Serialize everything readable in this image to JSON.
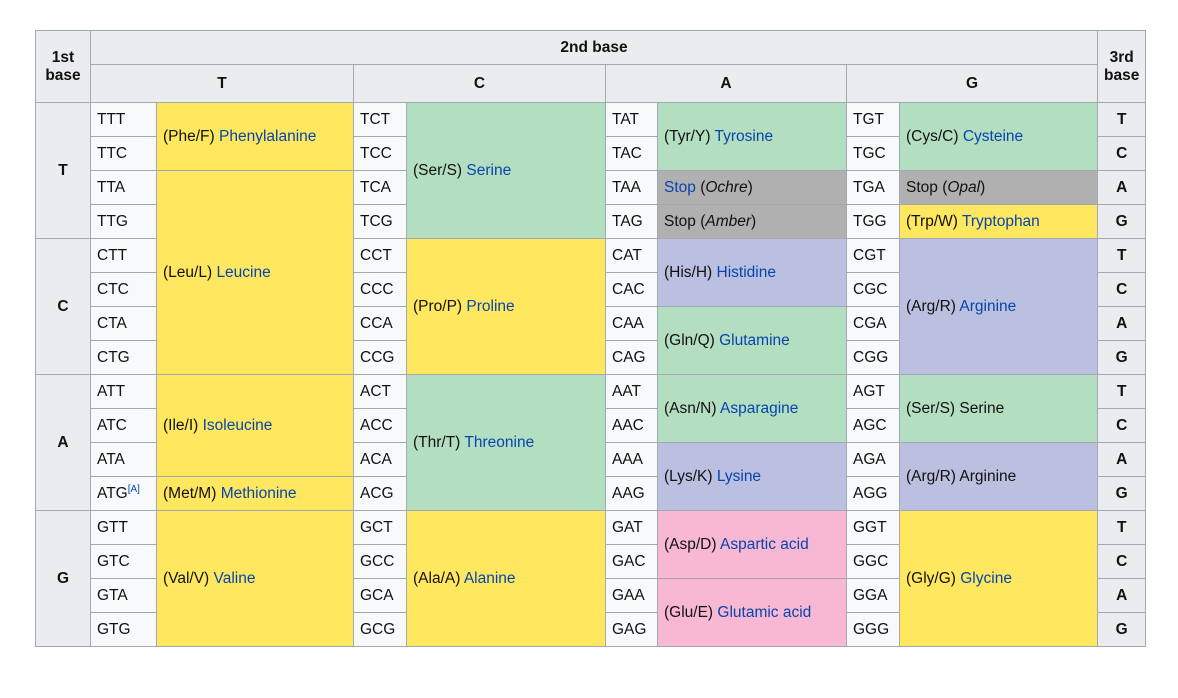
{
  "header": {
    "first_base_line1": "1st",
    "first_base_line2": "base",
    "second_base": "2nd base",
    "third_base_line1": "3rd",
    "third_base_line2": "base",
    "columns": [
      "T",
      "C",
      "A",
      "G"
    ]
  },
  "row_bases": [
    "T",
    "C",
    "A",
    "G"
  ],
  "third_bases": [
    "T",
    "C",
    "A",
    "G"
  ],
  "footnote_ref": "[A]",
  "stop_word": "Stop",
  "codons": {
    "TTT": "TTT",
    "TTC": "TTC",
    "TTA": "TTA",
    "TTG": "TTG",
    "CTT": "CTT",
    "CTC": "CTC",
    "CTA": "CTA",
    "CTG": "CTG",
    "ATT": "ATT",
    "ATC": "ATC",
    "ATA": "ATA",
    "ATG": "ATG",
    "GTT": "GTT",
    "GTC": "GTC",
    "GTA": "GTA",
    "GTG": "GTG",
    "TCT": "TCT",
    "TCC": "TCC",
    "TCA": "TCA",
    "TCG": "TCG",
    "CCT": "CCT",
    "CCC": "CCC",
    "CCA": "CCA",
    "CCG": "CCG",
    "ACT": "ACT",
    "ACC": "ACC",
    "ACA": "ACA",
    "ACG": "ACG",
    "GCT": "GCT",
    "GCC": "GCC",
    "GCA": "GCA",
    "GCG": "GCG",
    "TAT": "TAT",
    "TAC": "TAC",
    "TAA": "TAA",
    "TAG": "TAG",
    "CAT": "CAT",
    "CAC": "CAC",
    "CAA": "CAA",
    "CAG": "CAG",
    "AAT": "AAT",
    "AAC": "AAC",
    "AAA": "AAA",
    "AAG": "AAG",
    "GAT": "GAT",
    "GAC": "GAC",
    "GAA": "GAA",
    "GAG": "GAG",
    "TGT": "TGT",
    "TGC": "TGC",
    "TGA": "TGA",
    "TGG": "TGG",
    "CGT": "CGT",
    "CGC": "CGC",
    "CGA": "CGA",
    "CGG": "CGG",
    "AGT": "AGT",
    "AGC": "AGC",
    "AGA": "AGA",
    "AGG": "AGG",
    "GGT": "GGT",
    "GGC": "GGC",
    "GGA": "GGA",
    "GGG": "GGG"
  },
  "amino_acids": {
    "phe": {
      "abbr": "(Phe/F)",
      "name": "Phenylalanine"
    },
    "leu": {
      "abbr": "(Leu/L)",
      "name": "Leucine"
    },
    "ile": {
      "abbr": "(Ile/I)",
      "name": "Isoleucine"
    },
    "met": {
      "abbr": "(Met/M)",
      "name": "Methionine"
    },
    "val": {
      "abbr": "(Val/V)",
      "name": "Valine"
    },
    "ser1": {
      "abbr": "(Ser/S)",
      "name": "Serine"
    },
    "pro": {
      "abbr": "(Pro/P)",
      "name": "Proline"
    },
    "thr": {
      "abbr": "(Thr/T)",
      "name": "Threonine"
    },
    "ala": {
      "abbr": "(Ala/A)",
      "name": "Alanine"
    },
    "tyr": {
      "abbr": "(Tyr/Y)",
      "name": "Tyrosine"
    },
    "stop_ochre": {
      "name": "Ochre"
    },
    "stop_amber": {
      "name": "Amber"
    },
    "his": {
      "abbr": "(His/H)",
      "name": "Histidine"
    },
    "gln": {
      "abbr": "(Gln/Q)",
      "name": "Glutamine"
    },
    "asn": {
      "abbr": "(Asn/N)",
      "name": "Asparagine"
    },
    "lys": {
      "abbr": "(Lys/K)",
      "name": "Lysine"
    },
    "asp": {
      "abbr": "(Asp/D)",
      "name": "Aspartic acid"
    },
    "glu": {
      "abbr": "(Glu/E)",
      "name": "Glutamic acid"
    },
    "cys": {
      "abbr": "(Cys/C)",
      "name": "Cysteine"
    },
    "stop_opal": {
      "name": "Opal"
    },
    "trp": {
      "abbr": "(Trp/W)",
      "name": "Tryptophan"
    },
    "arg1": {
      "abbr": "(Arg/R)",
      "name": "Arginine"
    },
    "ser2": {
      "abbr": "(Ser/S)",
      "name": "Serine"
    },
    "arg2": {
      "abbr": "(Arg/R)",
      "name": "Arginine"
    },
    "gly": {
      "abbr": "(Gly/G)",
      "name": "Glycine"
    }
  },
  "colors": {
    "nonpolar": "#ffe75f",
    "polar": "#b3dec0",
    "basic": "#bbbfe0",
    "acidic": "#f8b7d3",
    "stop": "#b0b0b0",
    "link": "#0645ad",
    "header_bg": "#eaecf0"
  }
}
